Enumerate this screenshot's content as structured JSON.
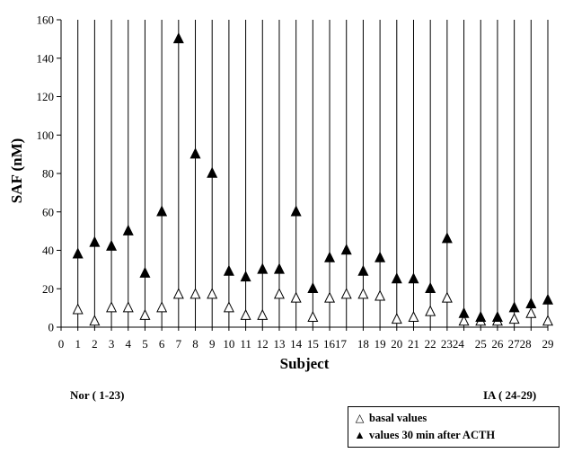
{
  "chart_data": {
    "type": "scatter",
    "ylabel": "SAF (nM)",
    "xlabel": "Subject",
    "ylim": [
      0,
      160
    ],
    "yticks": [
      0,
      20,
      40,
      60,
      80,
      100,
      120,
      140,
      160
    ],
    "xlim": [
      0,
      29
    ],
    "xticks": [
      0,
      1,
      2,
      3,
      4,
      5,
      6,
      7,
      8,
      9,
      10,
      11,
      12,
      13,
      14,
      15,
      16,
      17,
      18,
      19,
      20,
      21,
      22,
      23,
      24,
      25,
      26,
      27,
      28,
      29
    ],
    "xtick_labels": [
      "0",
      "1",
      "2",
      "3",
      "4",
      "5",
      "6",
      "7",
      "8",
      "9",
      "10",
      "11",
      "12",
      "13",
      "14",
      "15",
      "1617",
      "",
      "18",
      "19",
      "20",
      "21",
      "22",
      "2324",
      "",
      "25",
      "26",
      "2728",
      "",
      "29"
    ],
    "vertical_lines_per_subject": true,
    "series": [
      {
        "name": "basal values",
        "marker": "open-triangle",
        "x": [
          1,
          2,
          3,
          4,
          5,
          6,
          7,
          8,
          9,
          10,
          11,
          12,
          13,
          14,
          15,
          16,
          17,
          18,
          19,
          20,
          21,
          22,
          23,
          24,
          25,
          26,
          27,
          28,
          29
        ],
        "values": [
          9,
          3,
          10,
          10,
          6,
          10,
          17,
          17,
          17,
          10,
          6,
          6,
          17,
          15,
          5,
          15,
          17,
          17,
          16,
          4,
          5,
          8,
          15,
          3,
          3,
          3,
          4,
          7,
          3
        ]
      },
      {
        "name": "values 30 min after ACTH",
        "marker": "filled-triangle",
        "x": [
          1,
          2,
          3,
          4,
          5,
          6,
          7,
          8,
          9,
          10,
          11,
          12,
          13,
          14,
          15,
          16,
          17,
          18,
          19,
          20,
          21,
          22,
          23,
          24,
          25,
          26,
          27,
          28,
          29
        ],
        "values": [
          38,
          44,
          42,
          50,
          28,
          60,
          150,
          90,
          80,
          29,
          26,
          30,
          30,
          60,
          20,
          36,
          40,
          29,
          36,
          25,
          25,
          20,
          46,
          7,
          5,
          5,
          10,
          12,
          14
        ]
      }
    ],
    "groups": [
      {
        "label": "Nor ( 1-23)",
        "range": [
          1,
          23
        ]
      },
      {
        "label": "IA ( 24-29)",
        "range": [
          24,
          29
        ]
      }
    ],
    "legend": "bottom-right"
  },
  "legend": {
    "basal_symbol": "△",
    "basal_label": "basal values",
    "acth_symbol": "▲",
    "acth_label": "values 30 min after ACTH"
  }
}
